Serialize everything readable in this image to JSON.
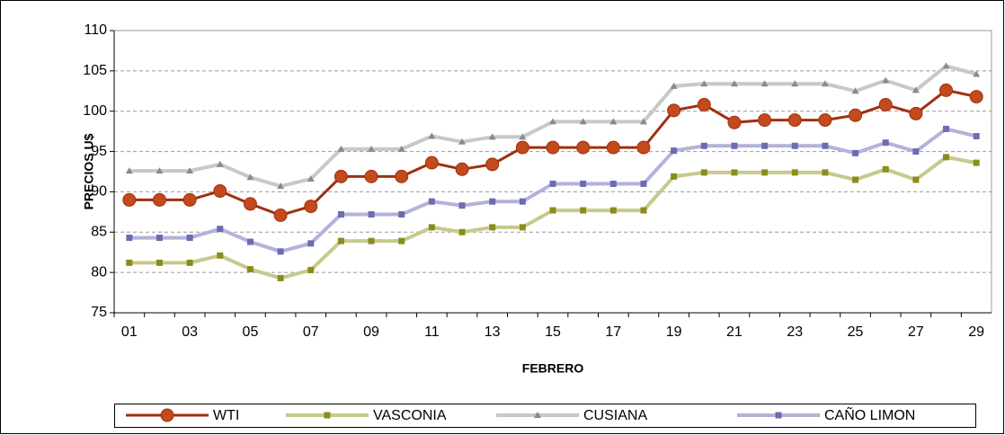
{
  "chart_data": {
    "type": "line",
    "xlabel": "FEBRERO",
    "ylabel": "PRECIOS U$",
    "categories": [
      "01",
      null,
      "03",
      null,
      "05",
      null,
      "07",
      null,
      "09",
      null,
      "11",
      null,
      "13",
      null,
      "15",
      null,
      "17",
      null,
      "19",
      null,
      "21",
      null,
      "23",
      null,
      "25",
      null,
      "27",
      null,
      "29"
    ],
    "ylim": [
      75,
      110
    ],
    "yticks": [
      75,
      80,
      85,
      90,
      95,
      100,
      105,
      110
    ],
    "grid": true,
    "legend": "bottom",
    "series": [
      {
        "name": "WTI",
        "color": "#a0300f",
        "marker_color": "#c24a1c",
        "marker": "circle",
        "values": [
          89,
          89,
          89,
          90.1,
          88.5,
          87.1,
          88.2,
          91.9,
          91.9,
          91.9,
          93.6,
          92.8,
          93.4,
          95.5,
          95.5,
          95.5,
          95.5,
          95.5,
          100.1,
          100.8,
          98.6,
          98.9,
          98.9,
          98.9,
          99.5,
          100.8,
          99.7,
          102.6,
          101.8
        ]
      },
      {
        "name": "VASCONIA",
        "color": "#c6ca8c",
        "marker_color": "#8c8c1c",
        "marker": "square",
        "values": [
          81.2,
          81.2,
          81.2,
          82.1,
          80.4,
          79.3,
          80.3,
          83.9,
          83.9,
          83.9,
          85.6,
          85,
          85.6,
          85.6,
          87.7,
          87.7,
          87.7,
          87.7,
          91.9,
          92.4,
          92.4,
          92.4,
          92.4,
          92.4,
          91.5,
          92.8,
          91.5,
          94.3,
          93.6
        ]
      },
      {
        "name": "CUSIANA",
        "color": "#c8c8c8",
        "marker_color": "#8a8a8a",
        "marker": "triangle",
        "values": [
          92.6,
          92.6,
          92.6,
          93.4,
          91.8,
          90.7,
          91.6,
          95.3,
          95.3,
          95.3,
          96.9,
          96.2,
          96.8,
          96.8,
          98.7,
          98.7,
          98.7,
          98.7,
          103.1,
          103.4,
          103.4,
          103.4,
          103.4,
          103.4,
          102.5,
          103.8,
          102.6,
          105.6,
          104.6
        ]
      },
      {
        "name": "CAÑO LIMON",
        "color": "#b2b2da",
        "marker_color": "#6c6cb2",
        "marker": "square",
        "values": [
          84.3,
          84.3,
          84.3,
          85.4,
          83.8,
          82.6,
          83.6,
          87.2,
          87.2,
          87.2,
          88.8,
          88.3,
          88.8,
          88.8,
          91,
          91,
          91,
          91,
          95.1,
          95.7,
          95.7,
          95.7,
          95.7,
          95.7,
          94.8,
          96.1,
          95,
          97.8,
          96.9
        ]
      }
    ]
  }
}
